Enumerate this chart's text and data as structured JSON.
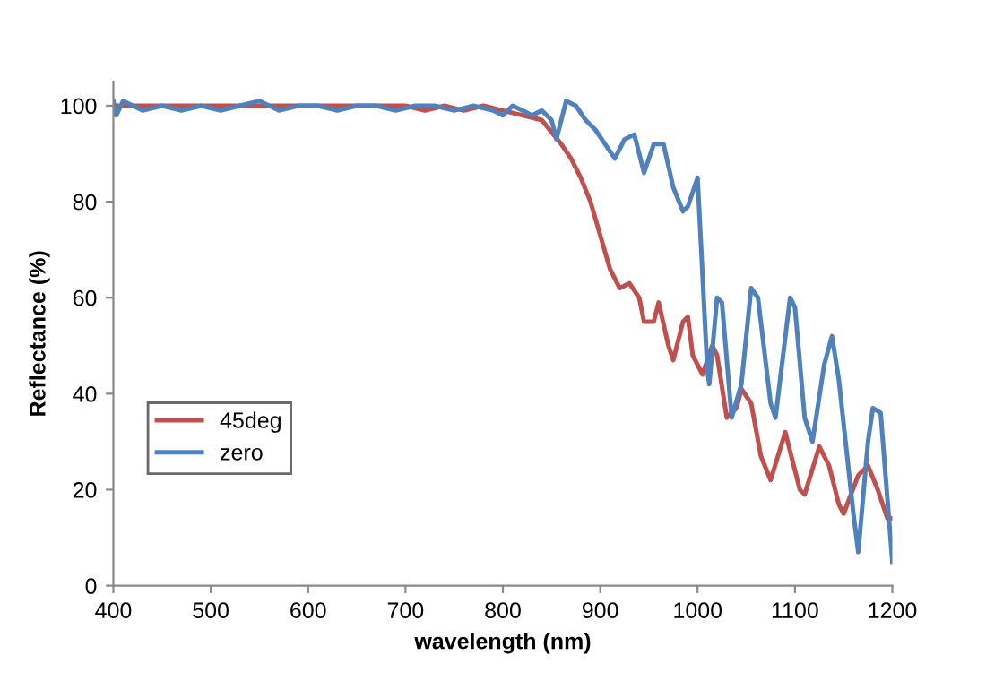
{
  "chart_data": {
    "type": "line",
    "xlabel": "wavelength (nm)",
    "ylabel": "Reflectance (%)",
    "xlim": [
      400,
      1200
    ],
    "ylim": [
      0,
      105
    ],
    "xticks": [
      400,
      500,
      600,
      700,
      800,
      900,
      1000,
      1100,
      1200
    ],
    "yticks": [
      0,
      20,
      40,
      60,
      80,
      100
    ],
    "grid": false,
    "legend": "left",
    "marker": "none",
    "line_style": "solid",
    "series": [
      {
        "name": "45deg",
        "color": "#c0504d",
        "x": [
          400,
          450,
          500,
          550,
          600,
          650,
          700,
          720,
          740,
          760,
          780,
          800,
          820,
          840,
          860,
          870,
          880,
          890,
          900,
          910,
          920,
          930,
          940,
          945,
          955,
          960,
          970,
          975,
          985,
          990,
          995,
          1005,
          1015,
          1020,
          1030,
          1040,
          1045,
          1055,
          1065,
          1075,
          1090,
          1105,
          1110,
          1125,
          1135,
          1145,
          1150,
          1165,
          1175,
          1185,
          1195,
          1200
        ],
        "values": [
          100,
          100,
          100,
          100,
          100,
          100,
          100,
          99,
          100,
          99,
          100,
          99,
          98,
          97,
          92,
          89,
          85,
          80,
          73,
          66,
          62,
          63,
          60,
          55,
          55,
          59,
          50,
          47,
          55,
          56,
          48,
          44,
          50,
          48,
          35,
          37,
          41,
          38,
          27,
          22,
          32,
          20,
          19,
          29,
          25,
          17,
          15,
          23,
          25,
          20,
          14,
          14
        ]
      },
      {
        "name": "zero",
        "color": "#4f81bd",
        "x": [
          400,
          403,
          410,
          420,
          430,
          450,
          470,
          490,
          510,
          530,
          550,
          570,
          590,
          610,
          630,
          650,
          670,
          690,
          710,
          730,
          750,
          770,
          790,
          800,
          810,
          820,
          830,
          840,
          850,
          855,
          865,
          875,
          885,
          895,
          905,
          915,
          925,
          935,
          945,
          955,
          965,
          975,
          985,
          990,
          1000,
          1010,
          1012,
          1020,
          1025,
          1035,
          1045,
          1055,
          1062,
          1075,
          1080,
          1095,
          1100,
          1110,
          1118,
          1130,
          1138,
          1145,
          1160,
          1165,
          1175,
          1180,
          1188,
          1200
        ],
        "values": [
          101,
          98,
          101,
          100,
          99,
          100,
          99,
          100,
          99,
          100,
          101,
          99,
          100,
          100,
          99,
          100,
          100,
          99,
          100,
          100,
          99,
          100,
          99,
          98,
          100,
          99,
          98,
          99,
          97,
          93,
          101,
          100,
          97,
          95,
          92,
          89,
          93,
          94,
          86,
          92,
          92,
          83,
          78,
          79,
          85,
          45,
          42,
          60,
          59,
          35,
          42,
          62,
          60,
          38,
          35,
          60,
          58,
          35,
          30,
          46,
          52,
          43,
          15,
          7,
          30,
          37,
          36,
          5
        ]
      }
    ]
  }
}
